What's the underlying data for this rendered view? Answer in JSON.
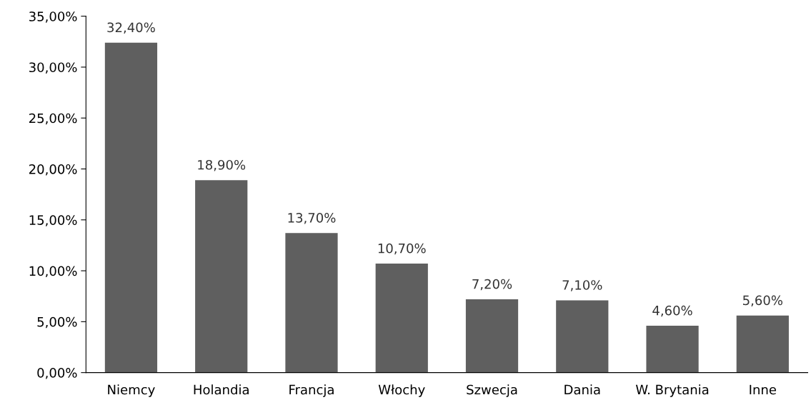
{
  "chart_data": {
    "type": "bar",
    "categories": [
      "Niemcy",
      "Holandia",
      "Francja",
      "Włochy",
      "Szwecja",
      "Dania",
      "W. Brytania",
      "Inne"
    ],
    "values": [
      32.4,
      18.9,
      13.7,
      10.7,
      7.2,
      7.1,
      4.6,
      5.6
    ],
    "value_labels": [
      "32,40%",
      "18,90%",
      "13,70%",
      "10,70%",
      "7,20%",
      "7,10%",
      "4,60%",
      "5,60%"
    ],
    "color": "#5f5f5f",
    "ylim": [
      0,
      35
    ],
    "yticks": [
      {
        "value": 0,
        "label": "0,00%"
      },
      {
        "value": 5,
        "label": "5,00%"
      },
      {
        "value": 10,
        "label": "10,00%"
      },
      {
        "value": 15,
        "label": "15,00%"
      },
      {
        "value": 20,
        "label": "20,00%"
      },
      {
        "value": 25,
        "label": "25,00%"
      },
      {
        "value": 30,
        "label": "30,00%"
      },
      {
        "value": 35,
        "label": "35,00%"
      }
    ],
    "grid": false,
    "legend": false
  }
}
